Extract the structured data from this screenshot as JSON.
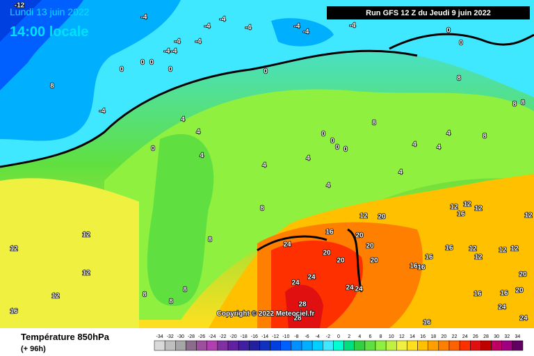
{
  "header": {
    "date": "Lundi 13 juin 2022",
    "time": "14:00 locale",
    "run": "Run GFS 12 Z du Jeudi 9 juin 2022"
  },
  "footer": {
    "title": "Température 850hPa",
    "lead": "(+ 96h)",
    "copyright": "Copyright © 2022 Meteociel.fr"
  },
  "legend": {
    "ticks": [
      -34,
      -32,
      -30,
      -28,
      -26,
      -24,
      -22,
      -20,
      -18,
      -16,
      -14,
      -12,
      -10,
      -8,
      -6,
      -4,
      -2,
      0,
      2,
      4,
      6,
      8,
      10,
      12,
      14,
      16,
      18,
      20,
      22,
      24,
      26,
      28,
      30,
      32,
      34
    ],
    "colors": [
      "#d9d9d9",
      "#bfbfbf",
      "#a6a6a6",
      "#8c6c8c",
      "#9c4f9c",
      "#b040b0",
      "#8030a0",
      "#6020a0",
      "#4020a0",
      "#2020a0",
      "#1030c0",
      "#0040e0",
      "#0060ff",
      "#0090ff",
      "#00b0ff",
      "#00d0ff",
      "#40e8ff",
      "#00ffd0",
      "#00e080",
      "#30d040",
      "#60e040",
      "#90f040",
      "#c0f040",
      "#f0f040",
      "#ffe020",
      "#ffc000",
      "#ffa000",
      "#ff8000",
      "#ff6000",
      "#ff3000",
      "#e01010",
      "#c00000",
      "#c00060",
      "#a00080",
      "#600060"
    ]
  },
  "map_labels": [
    "-12",
    "-4",
    "-4",
    "-4",
    "-4",
    "-4",
    "-4",
    "-4",
    "-4",
    "-4",
    "-4",
    "-4",
    "0",
    "0",
    "0",
    "0",
    "0",
    "0",
    "0",
    "0",
    "0",
    "0",
    "0",
    "0",
    "8",
    "-4",
    "4",
    "4",
    "4",
    "4",
    "4",
    "4",
    "4",
    "4",
    "4",
    "4",
    "8",
    "8",
    "8",
    "8",
    "8",
    "8",
    "8",
    "8",
    "8",
    "8",
    "12",
    "12",
    "12",
    "12",
    "16",
    "12",
    "20",
    "16",
    "20",
    "20",
    "24",
    "20",
    "20",
    "20",
    "24",
    "24",
    "24",
    "24",
    "28",
    "28",
    "16",
    "16",
    "16",
    "16",
    "12",
    "12",
    "12",
    "12",
    "12",
    "12",
    "12",
    "12",
    "16",
    "16",
    "16",
    "20",
    "20",
    "24",
    "24",
    "16"
  ]
}
